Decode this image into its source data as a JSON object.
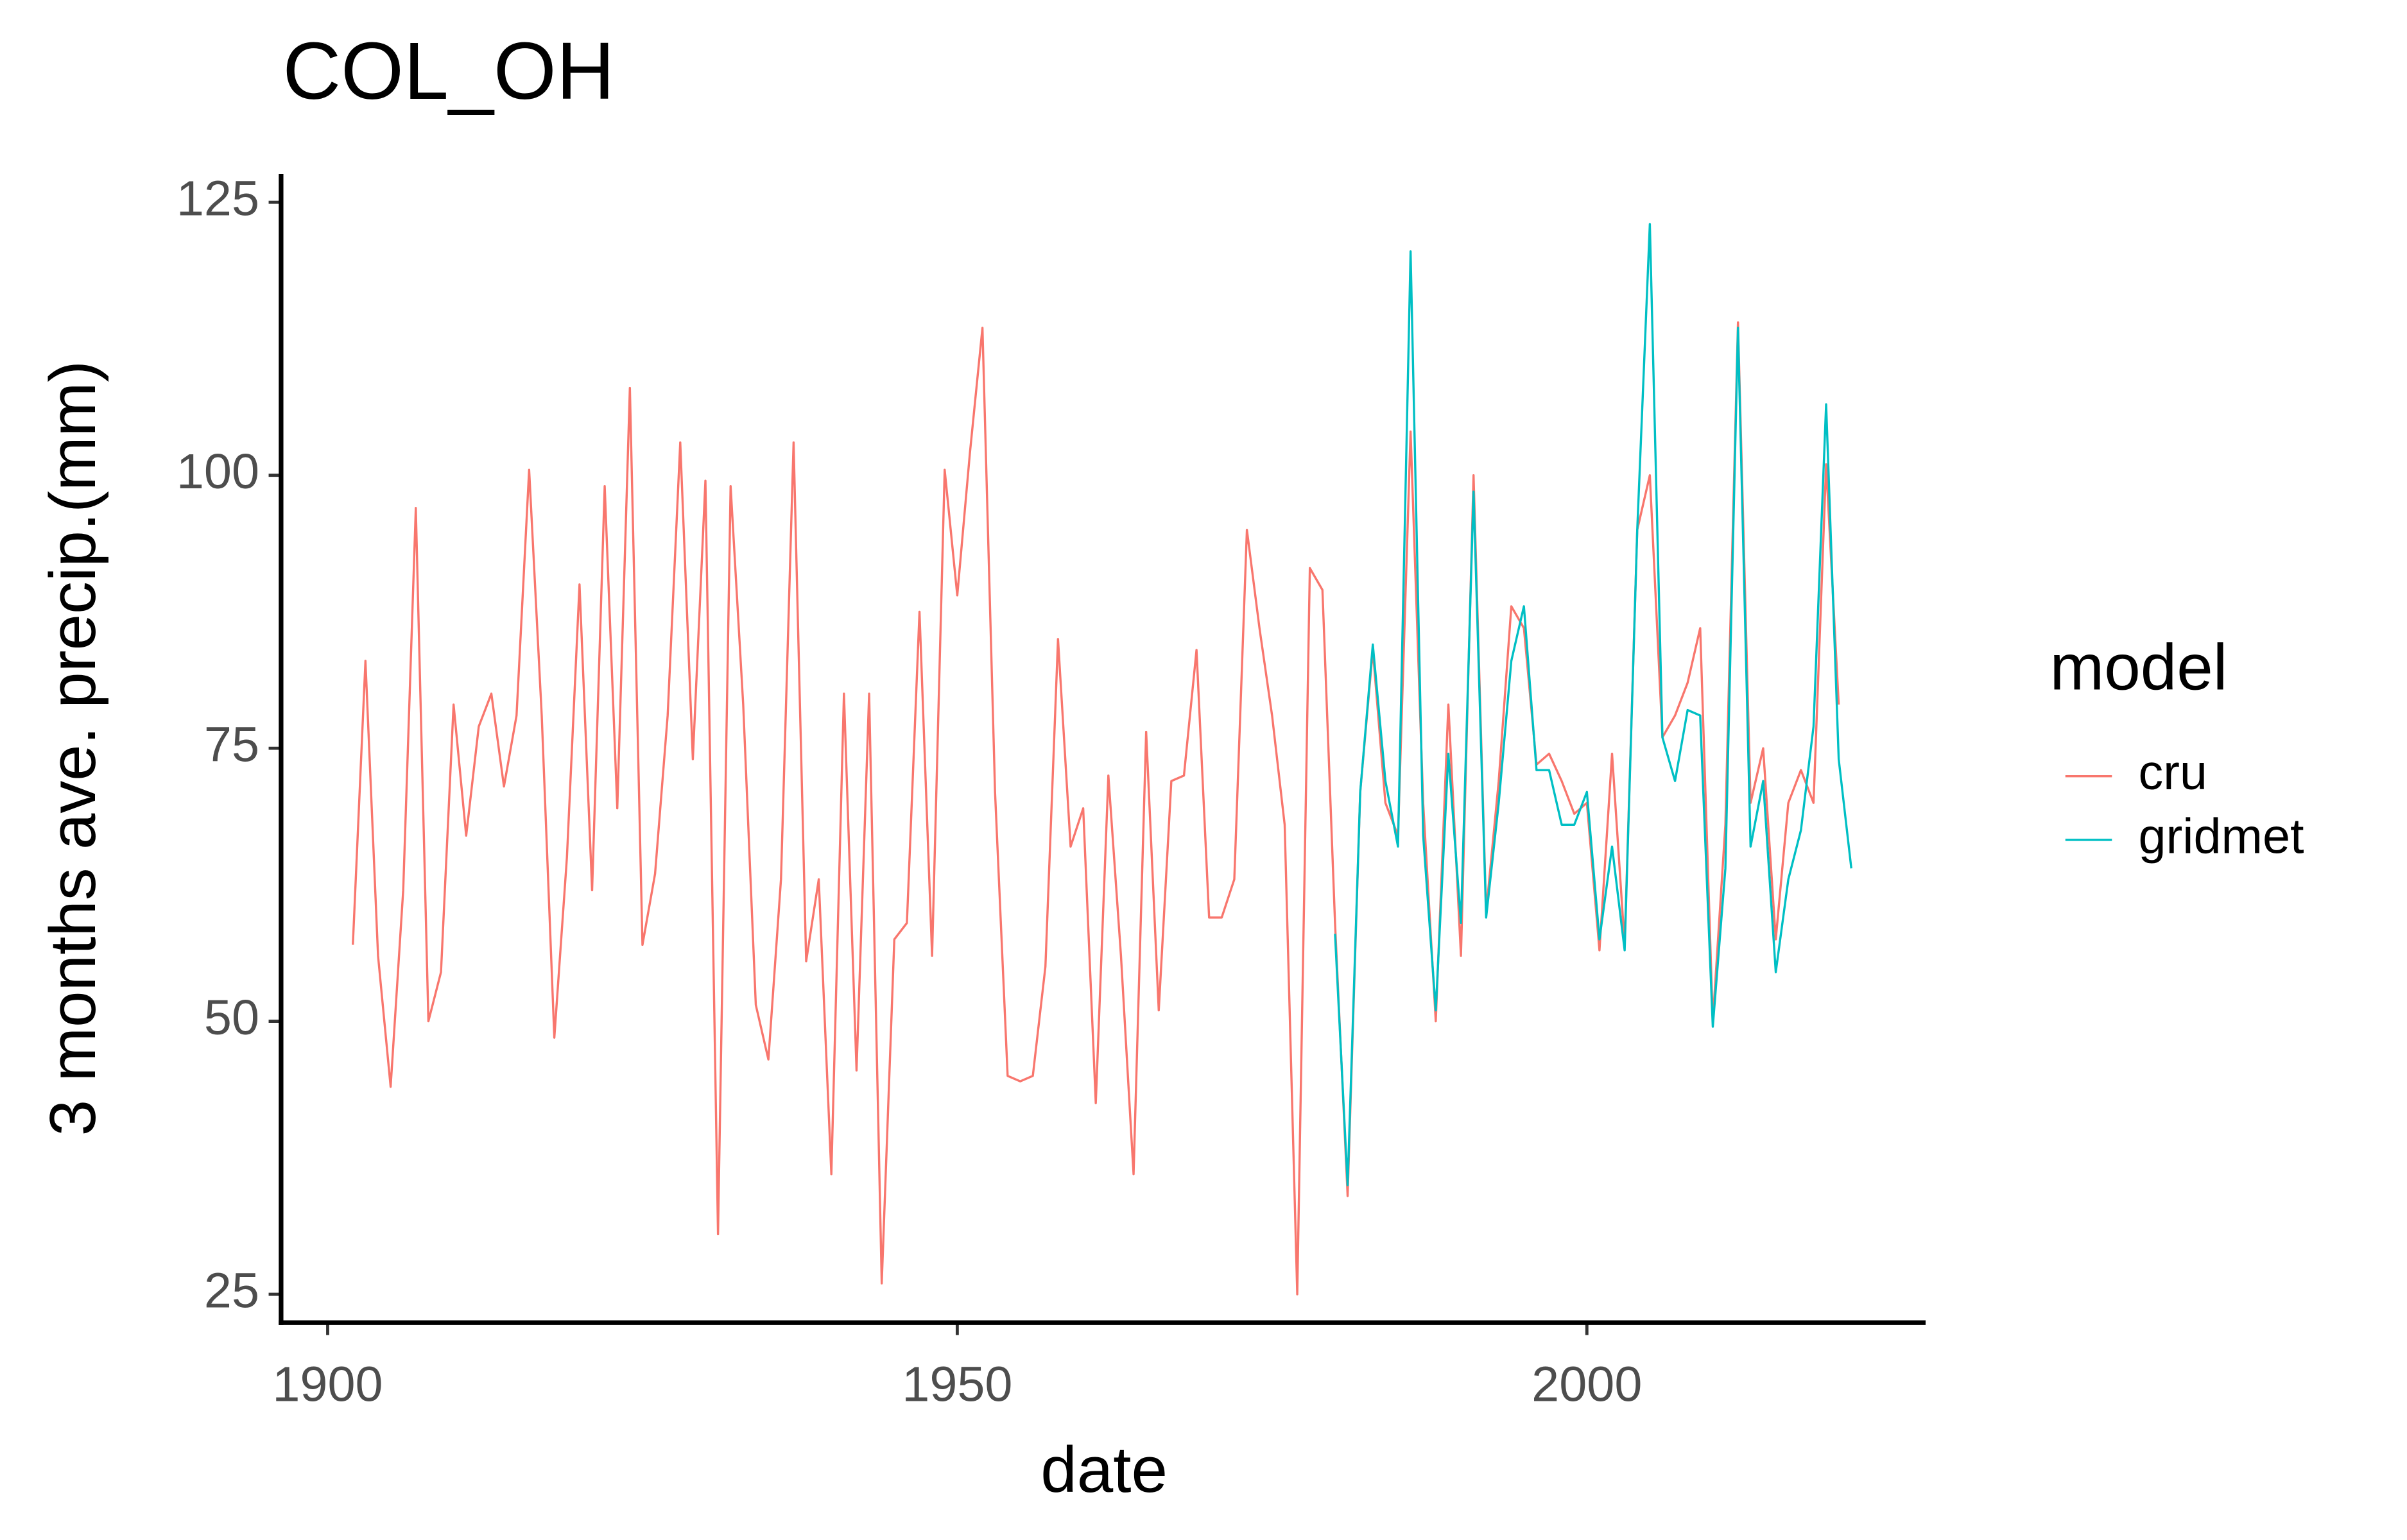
{
  "chart_data": {
    "type": "line",
    "title": "COL_OH",
    "x_label": "date",
    "y_label": "3 months ave. precip.(mm)",
    "legend_title": "model",
    "legend_position": "right",
    "xlim": [
      1896.3,
      2026.9
    ],
    "xticks": [
      1900,
      1950,
      2000
    ],
    "ylim": [
      22.4,
      127.6
    ],
    "yticks": [
      25,
      50,
      75,
      100,
      125
    ],
    "grid": false,
    "series": [
      {
        "name": "cru",
        "color": "#F8766D",
        "x": [
          1902,
          1903,
          1904,
          1905,
          1906,
          1907,
          1908,
          1909,
          1910,
          1911,
          1912,
          1913,
          1914,
          1915,
          1916,
          1917,
          1918,
          1919,
          1920,
          1921,
          1922,
          1923,
          1924,
          1925,
          1926,
          1927,
          1928,
          1929,
          1930,
          1931,
          1932,
          1933,
          1934,
          1935,
          1936,
          1937,
          1938,
          1939,
          1940,
          1941,
          1942,
          1943,
          1944,
          1945,
          1946,
          1947,
          1948,
          1949,
          1950,
          1951,
          1952,
          1953,
          1954,
          1955,
          1956,
          1957,
          1958,
          1959,
          1960,
          1961,
          1962,
          1963,
          1964,
          1965,
          1966,
          1967,
          1968,
          1969,
          1970,
          1971,
          1972,
          1973,
          1974,
          1975,
          1976,
          1977,
          1978,
          1979,
          1980,
          1981,
          1982,
          1983,
          1984,
          1985,
          1986,
          1987,
          1988,
          1989,
          1990,
          1991,
          1992,
          1993,
          1994,
          1995,
          1996,
          1997,
          1998,
          1999,
          2000,
          2001,
          2002,
          2003,
          2004,
          2005,
          2006,
          2007,
          2008,
          2009,
          2010,
          2011,
          2012,
          2013,
          2014,
          2015,
          2016,
          2017,
          2018,
          2019,
          2020
        ],
        "values": [
          57,
          83,
          56,
          44,
          62,
          97,
          50,
          54.5,
          79,
          67,
          77,
          80,
          71.5,
          78,
          100.5,
          78,
          48.5,
          65,
          90,
          62,
          99,
          69.5,
          108,
          57,
          63.5,
          78,
          103,
          74,
          99.5,
          30.5,
          99,
          79,
          51.5,
          46.5,
          63,
          103,
          55.5,
          63,
          36,
          80,
          45.5,
          80,
          26,
          57.5,
          59,
          87.5,
          56,
          100.5,
          89,
          102,
          113.5,
          71,
          45,
          44.5,
          45,
          55,
          85,
          66,
          69.5,
          42.5,
          72.5,
          56,
          36,
          76.5,
          51,
          72,
          72.5,
          84,
          59.5,
          59.5,
          63,
          95,
          86,
          78,
          68,
          25,
          91.5,
          89.5,
          59,
          34,
          71,
          84,
          70,
          67,
          104,
          70,
          50,
          79,
          56,
          100,
          60,
          72,
          88,
          86,
          73.5,
          74.5,
          72,
          69,
          70,
          56.5,
          74.5,
          57,
          95,
          100,
          76,
          78,
          81,
          86,
          50,
          68,
          114,
          70,
          75,
          57.5,
          70,
          73,
          70,
          101,
          79
        ]
      },
      {
        "name": "gridmet",
        "color": "#00BFC4",
        "x": [
          1980,
          1981,
          1982,
          1983,
          1984,
          1985,
          1986,
          1987,
          1988,
          1989,
          1990,
          1991,
          1992,
          1993,
          1994,
          1995,
          1996,
          1997,
          1998,
          1999,
          2000,
          2001,
          2002,
          2003,
          2004,
          2005,
          2006,
          2007,
          2008,
          2009,
          2010,
          2011,
          2012,
          2013,
          2014,
          2015,
          2016,
          2017,
          2018,
          2019,
          2020,
          2021
        ],
        "values": [
          58,
          35,
          71,
          84.5,
          72,
          66,
          120.5,
          67,
          51,
          74.5,
          59,
          98.5,
          59.5,
          70,
          83,
          88,
          73,
          73,
          68,
          68,
          71,
          57.5,
          66,
          56.5,
          95,
          123,
          76,
          72,
          78.5,
          78,
          49.5,
          64,
          113.5,
          66,
          72,
          54.5,
          63,
          67.5,
          77,
          106.5,
          74,
          64
        ]
      }
    ]
  }
}
